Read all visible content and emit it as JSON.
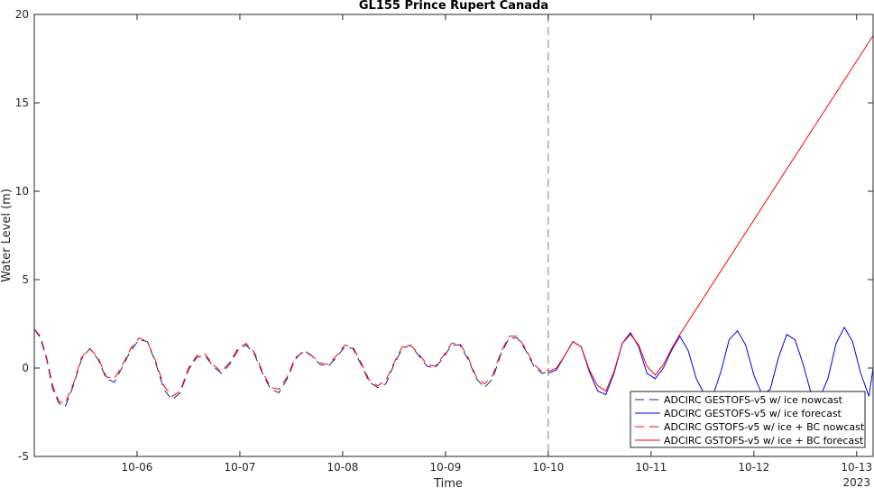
{
  "chart_data": {
    "type": "line",
    "title": "GL155 Prince Rupert Canada",
    "xlabel": "Time",
    "ylabel": "Water Level (m)",
    "x_units": "days (Oct 2023)",
    "xlim": [
      5.0,
      13.16
    ],
    "ylim": [
      -5,
      20
    ],
    "x_ticks": [
      {
        "value": 6,
        "label": "10-06"
      },
      {
        "value": 7,
        "label": "10-07"
      },
      {
        "value": 8,
        "label": "10-08"
      },
      {
        "value": 9,
        "label": "10-09"
      },
      {
        "value": 10,
        "label": "10-10"
      },
      {
        "value": 11,
        "label": "10-11"
      },
      {
        "value": 12,
        "label": "10-12"
      },
      {
        "value": 13,
        "label": "10-13"
      }
    ],
    "x_year_label": "2023",
    "y_ticks": [
      -5,
      0,
      5,
      10,
      15,
      20
    ],
    "vline": {
      "x": 10.0,
      "style": "dashed"
    },
    "grid": false,
    "legend_position": "bottom-right",
    "series": [
      {
        "name": "ADCIRC GESTOFS-v5 w/ ice nowcast",
        "color": "#1f1f8f",
        "dash": "dashed",
        "x": [
          5.0,
          5.06,
          5.12,
          5.18,
          5.24,
          5.3,
          5.38,
          5.46,
          5.54,
          5.62,
          5.7,
          5.78,
          5.86,
          5.94,
          6.02,
          6.1,
          6.18,
          6.26,
          6.34,
          6.42,
          6.5,
          6.58,
          6.66,
          6.74,
          6.82,
          6.9,
          6.98,
          7.06,
          7.14,
          7.22,
          7.3,
          7.38,
          7.46,
          7.54,
          7.62,
          7.7,
          7.78,
          7.86,
          7.94,
          8.02,
          8.1,
          8.18,
          8.26,
          8.34,
          8.42,
          8.5,
          8.58,
          8.66,
          8.74,
          8.82,
          8.9,
          8.98,
          9.06,
          9.14,
          9.22,
          9.3,
          9.38,
          9.46,
          9.54,
          9.62,
          9.7,
          9.78,
          9.86,
          9.94,
          10.0
        ],
        "y": [
          2.2,
          1.7,
          0.5,
          -1.2,
          -2.0,
          -2.2,
          -1.0,
          0.5,
          1.1,
          0.5,
          -0.6,
          -0.8,
          0.1,
          1.0,
          1.6,
          1.5,
          0.3,
          -1.2,
          -1.8,
          -1.4,
          -0.1,
          0.6,
          0.7,
          0.1,
          -0.3,
          0.2,
          1.0,
          1.3,
          0.8,
          -0.3,
          -1.2,
          -1.4,
          -0.6,
          0.5,
          1.0,
          0.7,
          0.2,
          0.1,
          0.6,
          1.2,
          1.1,
          0.2,
          -0.8,
          -1.1,
          -0.9,
          0.2,
          1.1,
          1.3,
          0.7,
          0.1,
          0.0,
          0.6,
          1.3,
          1.3,
          0.5,
          -0.6,
          -1.1,
          -0.6,
          0.8,
          1.7,
          1.7,
          1.0,
          0.1,
          -0.3,
          -0.2
        ]
      },
      {
        "name": "ADCIRC GESTOFS-v5 w/ ice forecast",
        "color": "#0000ee",
        "dash": "solid",
        "x": [
          10.0,
          10.08,
          10.16,
          10.24,
          10.32,
          10.4,
          10.48,
          10.56,
          10.64,
          10.72,
          10.8,
          10.88,
          10.96,
          11.04,
          11.12,
          11.2,
          11.28,
          11.36,
          11.44,
          11.52,
          11.6,
          11.68,
          11.76,
          11.84,
          11.92,
          12.0,
          12.08,
          12.16,
          12.24,
          12.32,
          12.4,
          12.48,
          12.56,
          12.64,
          12.72,
          12.8,
          12.88,
          12.96,
          13.04,
          13.12,
          13.16
        ],
        "y": [
          -0.3,
          -0.1,
          0.7,
          1.5,
          1.2,
          -0.2,
          -1.3,
          -1.5,
          -0.3,
          1.4,
          2.0,
          1.2,
          -0.3,
          -0.6,
          0.0,
          1.0,
          1.8,
          1.0,
          -0.6,
          -1.5,
          -1.6,
          -0.2,
          1.6,
          2.1,
          1.3,
          -0.4,
          -1.5,
          -1.2,
          0.6,
          1.9,
          1.6,
          0.2,
          -1.5,
          -1.7,
          -0.6,
          1.4,
          2.3,
          1.5,
          -0.3,
          -1.6,
          0.0
        ]
      },
      {
        "name": "ADCIRC GSTOFS-v5 w/ ice + BC nowcast",
        "color": "#ff0000",
        "dash": "dashed",
        "x": [
          5.0,
          5.06,
          5.12,
          5.18,
          5.24,
          5.3,
          5.38,
          5.46,
          5.54,
          5.62,
          5.7,
          5.78,
          5.86,
          5.94,
          6.02,
          6.1,
          6.18,
          6.26,
          6.34,
          6.42,
          6.5,
          6.58,
          6.66,
          6.74,
          6.82,
          6.9,
          6.98,
          7.06,
          7.14,
          7.22,
          7.3,
          7.38,
          7.46,
          7.54,
          7.62,
          7.7,
          7.78,
          7.86,
          7.94,
          8.02,
          8.1,
          8.18,
          8.26,
          8.34,
          8.42,
          8.5,
          8.58,
          8.66,
          8.74,
          8.82,
          8.9,
          8.98,
          9.06,
          9.14,
          9.22,
          9.3,
          9.38,
          9.46,
          9.54,
          9.62,
          9.7,
          9.78,
          9.86,
          9.94,
          10.0
        ],
        "y": [
          2.2,
          1.8,
          0.6,
          -1.0,
          -1.9,
          -2.0,
          -0.9,
          0.6,
          1.1,
          0.6,
          -0.5,
          -0.6,
          0.2,
          1.1,
          1.7,
          1.5,
          0.4,
          -1.0,
          -1.6,
          -1.3,
          0.0,
          0.7,
          0.8,
          0.2,
          -0.2,
          0.3,
          1.1,
          1.4,
          0.9,
          -0.2,
          -1.1,
          -1.2,
          -0.5,
          0.6,
          0.9,
          0.7,
          0.3,
          0.2,
          0.7,
          1.3,
          1.2,
          0.3,
          -0.7,
          -1.0,
          -0.7,
          0.3,
          1.2,
          1.3,
          0.8,
          0.2,
          0.1,
          0.7,
          1.4,
          1.4,
          0.6,
          -0.5,
          -0.9,
          -0.4,
          0.9,
          1.8,
          1.8,
          1.1,
          0.2,
          -0.2,
          -0.1
        ]
      },
      {
        "name": "ADCIRC GSTOFS-v5 w/ ice + BC forecast",
        "color": "#ff0000",
        "dash": "solid",
        "x": [
          10.0,
          10.08,
          10.16,
          10.24,
          10.32,
          10.4,
          10.48,
          10.56,
          10.64,
          10.72,
          10.8,
          10.88,
          10.96,
          11.04,
          11.12,
          11.2,
          11.28,
          13.16
        ],
        "y": [
          -0.2,
          0.0,
          0.7,
          1.5,
          1.2,
          -0.1,
          -1.0,
          -1.3,
          -0.2,
          1.4,
          1.9,
          1.3,
          0.1,
          -0.4,
          0.2,
          1.1,
          1.9,
          18.8
        ]
      }
    ]
  }
}
